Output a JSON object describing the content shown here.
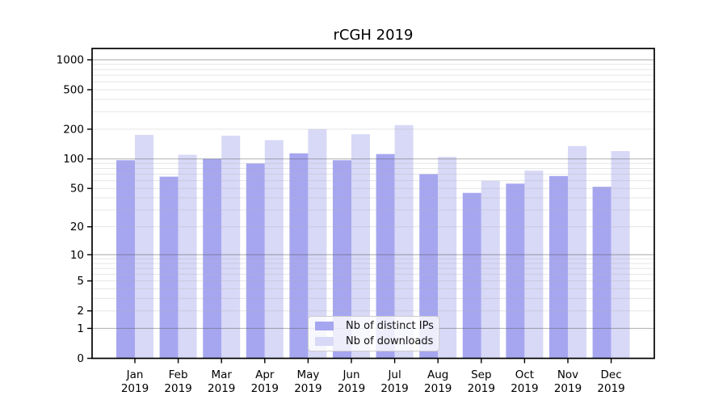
{
  "chart_data": {
    "type": "bar",
    "title": "rCGH 2019",
    "y_scale": "log1p",
    "ylim": [
      0,
      1300
    ],
    "y_ticks": [
      0,
      1,
      2,
      5,
      10,
      20,
      50,
      100,
      200,
      500,
      1000
    ],
    "grid": "major+minor horizontal",
    "legend_position": "lower center",
    "year": "2019",
    "categories": [
      "Jan",
      "Feb",
      "Mar",
      "Apr",
      "May",
      "Jun",
      "Jul",
      "Aug",
      "Sep",
      "Oct",
      "Nov",
      "Dec"
    ],
    "series": [
      {
        "name": "Nb of distinct IPs",
        "color": "#a6a6f0",
        "values": [
          97,
          66,
          100,
          90,
          114,
          97,
          112,
          70,
          45,
          56,
          67,
          52
        ]
      },
      {
        "name": "Nb of downloads",
        "color": "#d8d8f7",
        "values": [
          175,
          110,
          172,
          155,
          200,
          178,
          220,
          105,
          60,
          76,
          135,
          120
        ]
      }
    ]
  },
  "colors": {
    "major_grid": "#bababa",
    "minor_grid": "#ececec",
    "frame": "#000000",
    "text": "#000000"
  }
}
